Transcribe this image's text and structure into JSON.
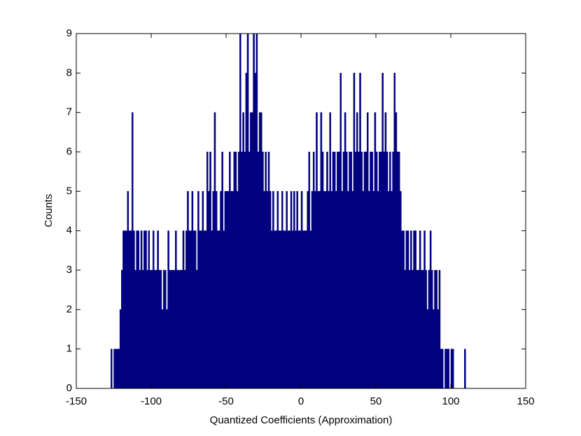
{
  "chart_data": {
    "type": "histogram",
    "xlabel": "Quantized Coefficients (Approximation)",
    "ylabel": "Counts",
    "color": "#000080",
    "xlim": [
      -150,
      150
    ],
    "xticks": [
      -150,
      -100,
      -50,
      0,
      50,
      100,
      150
    ],
    "ylim": [
      0,
      9
    ],
    "yticks": [
      0,
      1,
      2,
      3,
      4,
      5,
      6,
      7,
      8,
      9
    ],
    "bins": [
      -127,
      -126,
      -125,
      -124,
      -123,
      -122,
      -121,
      -120,
      -119,
      -118,
      -117,
      -116,
      -115,
      -114,
      -113,
      -112,
      -111,
      -110,
      -109,
      -108,
      -107,
      -106,
      -105,
      -104,
      -103,
      -102,
      -101,
      -100,
      -99,
      -98,
      -97,
      -96,
      -95,
      -94,
      -93,
      -92,
      -91,
      -90,
      -89,
      -88,
      -87,
      -86,
      -85,
      -84,
      -83,
      -82,
      -81,
      -80,
      -79,
      -78,
      -77,
      -76,
      -75,
      -74,
      -73,
      -72,
      -71,
      -70,
      -69,
      -68,
      -67,
      -66,
      -65,
      -64,
      -63,
      -62,
      -61,
      -60,
      -59,
      -58,
      -57,
      -56,
      -55,
      -54,
      -53,
      -52,
      -51,
      -50,
      -49,
      -48,
      -47,
      -46,
      -45,
      -44,
      -43,
      -42,
      -41,
      -40,
      -39,
      -38,
      -37,
      -36,
      -35,
      -34,
      -33,
      -32,
      -31,
      -30,
      -29,
      -28,
      -27,
      -26,
      -25,
      -24,
      -23,
      -22,
      -21,
      -20,
      -19,
      -18,
      -17,
      -16,
      -15,
      -14,
      -13,
      -12,
      -11,
      -10,
      -9,
      -8,
      -7,
      -6,
      -5,
      -4,
      -3,
      -2,
      -1,
      0,
      1,
      2,
      3,
      4,
      5,
      6,
      7,
      8,
      9,
      10,
      11,
      12,
      13,
      14,
      15,
      16,
      17,
      18,
      19,
      20,
      21,
      22,
      23,
      24,
      25,
      26,
      27,
      28,
      29,
      30,
      31,
      32,
      33,
      34,
      35,
      36,
      37,
      38,
      39,
      40,
      41,
      42,
      43,
      44,
      45,
      46,
      47,
      48,
      49,
      50,
      51,
      52,
      53,
      54,
      55,
      56,
      57,
      58,
      59,
      60,
      61,
      62,
      63,
      64,
      65,
      66,
      67,
      68,
      69,
      70,
      71,
      72,
      73,
      74,
      75,
      76,
      77,
      78,
      79,
      80,
      81,
      82,
      83,
      84,
      85,
      86,
      87,
      88,
      89,
      90,
      91,
      92,
      93,
      94,
      95,
      96,
      97,
      98,
      99,
      100,
      101,
      102,
      103,
      104,
      105,
      106,
      107,
      108,
      109,
      110,
      111
    ],
    "values": [
      1,
      0,
      1,
      1,
      1,
      1,
      2,
      3,
      4,
      4,
      4,
      5,
      4,
      4,
      7,
      4,
      3,
      4,
      4,
      3,
      4,
      3,
      4,
      4,
      3,
      4,
      3,
      3,
      4,
      3,
      3,
      4,
      3,
      3,
      2,
      3,
      3,
      2,
      4,
      3,
      3,
      3,
      3,
      4,
      3,
      3,
      3,
      3,
      4,
      3,
      4,
      5,
      4,
      4,
      5,
      4,
      4,
      3,
      5,
      4,
      4,
      5,
      4,
      4,
      6,
      5,
      6,
      4,
      5,
      7,
      5,
      4,
      4,
      5,
      6,
      4,
      5,
      5,
      5,
      6,
      5,
      5,
      6,
      6,
      5,
      6,
      9,
      6,
      7,
      6,
      8,
      9,
      6,
      7,
      7,
      9,
      8,
      9,
      6,
      7,
      7,
      6,
      5,
      6,
      5,
      6,
      5,
      4,
      5,
      4,
      4,
      5,
      4,
      4,
      5,
      4,
      4,
      5,
      4,
      4,
      5,
      4,
      5,
      4,
      5,
      4,
      4,
      5,
      4,
      4,
      4,
      5,
      6,
      4,
      5,
      6,
      5,
      7,
      5,
      5,
      7,
      6,
      5,
      5,
      6,
      5,
      7,
      5,
      6,
      6,
      5,
      6,
      6,
      8,
      5,
      6,
      7,
      6,
      5,
      6,
      6,
      5,
      8,
      6,
      7,
      6,
      8,
      6,
      5,
      6,
      6,
      7,
      5,
      6,
      6,
      5,
      7,
      6,
      5,
      6,
      6,
      8,
      6,
      7,
      6,
      5,
      6,
      5,
      6,
      8,
      7,
      6,
      6,
      5,
      4,
      4,
      3,
      4,
      4,
      3,
      4,
      3,
      4,
      4,
      3,
      3,
      4,
      3,
      3,
      4,
      3,
      2,
      3,
      4,
      3,
      2,
      3,
      3,
      2,
      3,
      1,
      1,
      0,
      1,
      1,
      1,
      0,
      1,
      1,
      0,
      0,
      0,
      0,
      0,
      0,
      0,
      1,
      0
    ]
  }
}
